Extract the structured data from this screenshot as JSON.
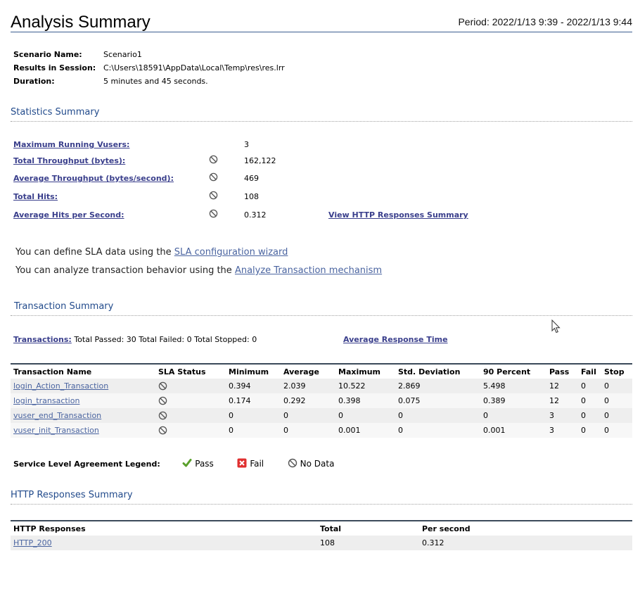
{
  "header": {
    "title": "Analysis Summary",
    "period": "Period: 2022/1/13 9:39 - 2022/1/13 9:44"
  },
  "scenario": {
    "name_label": "Scenario Name:",
    "name_value": "Scenario1",
    "results_label": "Results in Session:",
    "results_value": "C:\\Users\\18591\\AppData\\Local\\Temp\\res\\res.lrr",
    "duration_label": "Duration:",
    "duration_value": "5 minutes and 45 seconds."
  },
  "statistics": {
    "heading": "Statistics Summary",
    "rows": [
      {
        "label": "Maximum Running Vusers:",
        "value": "3",
        "has_icon": false
      },
      {
        "label": "Total Throughput (bytes):",
        "value": "162,122",
        "has_icon": true
      },
      {
        "label": "Average Throughput (bytes/second):",
        "value": "469",
        "has_icon": true
      },
      {
        "label": "Total Hits:",
        "value": "108",
        "has_icon": true
      },
      {
        "label": "Average Hits per Second:",
        "value": "0.312",
        "has_icon": true
      }
    ],
    "view_http_link": "View HTTP Responses Summary"
  },
  "sla": {
    "line1_text": "You can define SLA data using the ",
    "line1_link": "SLA configuration wizard",
    "line2_text": "You can analyze transaction behavior using the ",
    "line2_link": "Analyze Transaction mechanism"
  },
  "transactions": {
    "heading": "Transaction Summary",
    "summary_link": "Transactions:",
    "summary_text": "Total Passed: 30 Total Failed: 0 Total Stopped: 0",
    "avg_link": "Average Response Time",
    "columns": [
      "Transaction Name",
      "SLA Status",
      "Minimum",
      "Average",
      "Maximum",
      "Std. Deviation",
      "90 Percent",
      "Pass",
      "Fail",
      "Stop"
    ],
    "rows": [
      {
        "name": "login_Action_Transaction",
        "min": "0.394",
        "avg": "2.039",
        "max": "10.522",
        "std": "2.869",
        "p90": "5.498",
        "pass": "12",
        "fail": "0",
        "stop": "0"
      },
      {
        "name": "login_transaction",
        "min": "0.174",
        "avg": "0.292",
        "max": "0.398",
        "std": "0.075",
        "p90": "0.389",
        "pass": "12",
        "fail": "0",
        "stop": "0"
      },
      {
        "name": "vuser_end_Transaction",
        "min": "0",
        "avg": "0",
        "max": "0",
        "std": "0",
        "p90": "0",
        "pass": "3",
        "fail": "0",
        "stop": "0"
      },
      {
        "name": "vuser_init_Transaction",
        "min": "0",
        "avg": "0",
        "max": "0.001",
        "std": "0",
        "p90": "0.001",
        "pass": "3",
        "fail": "0",
        "stop": "0"
      }
    ]
  },
  "legend": {
    "label": "Service Level Agreement Legend:",
    "pass": "Pass",
    "fail": "Fail",
    "nodata": "No Data"
  },
  "http": {
    "heading": "HTTP Responses Summary",
    "columns": [
      "HTTP Responses",
      "Total",
      "Per second"
    ],
    "rows": [
      {
        "name": "HTTP_200",
        "total": "108",
        "per_second": "0.312"
      }
    ]
  },
  "colors": {
    "link": "#3a3f8c",
    "heading": "#224b8c",
    "pass": "#5aa02c",
    "fail": "#e03030"
  }
}
